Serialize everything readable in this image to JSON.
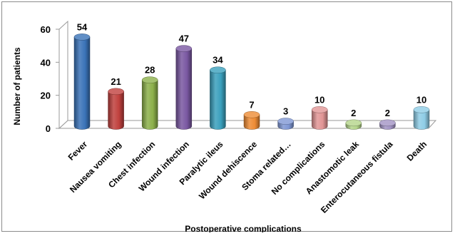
{
  "chart_data": {
    "type": "bar",
    "style": "3d-cylinder",
    "categories": [
      "Fever",
      "Nausea  vomiting",
      "Chest infection",
      "Wound infection",
      "Paralytic ileus",
      "Wound dehiscence",
      "Stoma related…",
      "No complications",
      "Anastomotic leak",
      "Enterocutaneous fistula",
      "Death"
    ],
    "values": [
      54,
      21,
      28,
      47,
      34,
      7,
      3,
      10,
      2,
      2,
      10
    ],
    "colors": [
      "#3a73b8",
      "#c0403d",
      "#8cb04a",
      "#7a58a2",
      "#3aa0bd",
      "#ee8c35",
      "#7f97d4",
      "#e19595",
      "#b4d58a",
      "#a294c4",
      "#8fcde6"
    ],
    "title": "",
    "xlabel": "Postoperative complications",
    "ylabel": "Number of patients",
    "ylim": [
      0,
      60
    ],
    "yticks": [
      0,
      20,
      40,
      60
    ],
    "grid": false,
    "legend": "none"
  }
}
